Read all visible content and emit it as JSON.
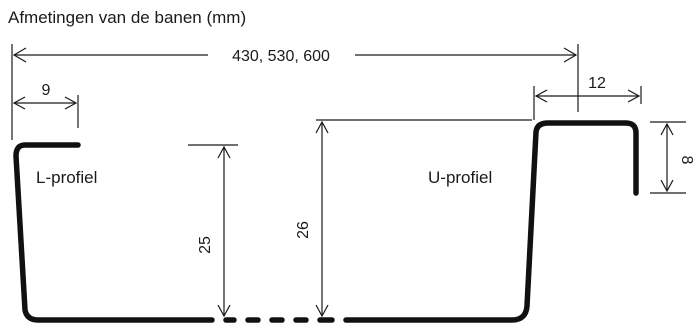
{
  "diagram": {
    "title": "Afmetingen van de banen (mm)",
    "dimensions": {
      "total_width": "430, 530, 600",
      "l_flange": "9",
      "u_top": "12",
      "u_lip": "8",
      "l_height": "25",
      "u_height": "26"
    },
    "profiles": {
      "l_profile": "L-profiel",
      "u_profile": "U-profiel"
    }
  }
}
